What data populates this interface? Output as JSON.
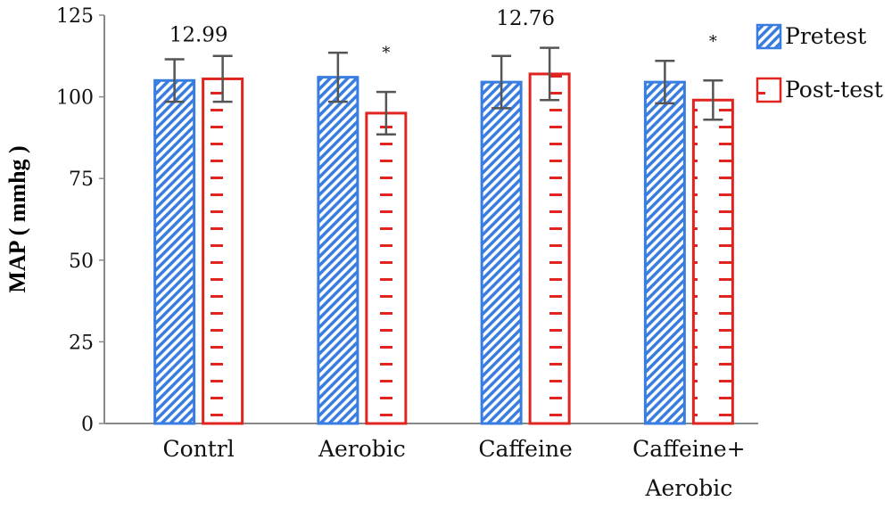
{
  "chart_data": {
    "type": "bar",
    "ylabel": "MAP ( mmhg )",
    "xlabel": "",
    "ylim": [
      0,
      125
    ],
    "yticks": [
      "0",
      "25",
      "50",
      "75",
      "100",
      "125"
    ],
    "categories": [
      [
        "Contrl"
      ],
      [
        "Aerobic"
      ],
      [
        "Caffeine"
      ],
      [
        "Caffeine+",
        "Aerobic"
      ]
    ],
    "series": [
      {
        "name": "Pretest",
        "color": "#3a7de0",
        "pattern": "diagonal-stripes",
        "values": [
          105,
          106,
          104.5,
          104.5
        ],
        "errors": [
          6.5,
          7.5,
          8,
          6.5
        ]
      },
      {
        "name": "Post-test",
        "color": "#e0241f",
        "pattern": "horizontal-dashes",
        "values": [
          105.5,
          95,
          107,
          99
        ],
        "errors": [
          7,
          6.5,
          8,
          6
        ]
      }
    ],
    "annotations": [
      {
        "category_index": 0,
        "text": "12.99",
        "y_value": 117
      },
      {
        "category_index": 2,
        "text": "12.76",
        "y_value": 122
      }
    ],
    "significance": [
      {
        "category_index": 1,
        "series_index": 1,
        "text": "*"
      },
      {
        "category_index": 3,
        "series_index": 1,
        "text": "*"
      }
    ],
    "legend_position": "top-right",
    "grid": false
  }
}
